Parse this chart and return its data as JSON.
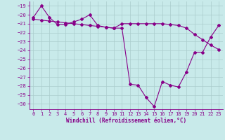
{
  "x": [
    0,
    1,
    2,
    3,
    4,
    5,
    6,
    7,
    8,
    9,
    10,
    11,
    12,
    13,
    14,
    15,
    16,
    17,
    18,
    19,
    20,
    21,
    22,
    23
  ],
  "y_actual": [
    -20.3,
    -19.0,
    -20.3,
    -21.1,
    -21.1,
    -20.8,
    -20.5,
    -20.0,
    -21.2,
    -21.4,
    -21.5,
    -21.5,
    -27.8,
    -27.9,
    -29.3,
    -30.3,
    -27.5,
    -27.9,
    -28.1,
    -26.4,
    -24.2,
    -24.2,
    -22.5,
    -21.2
  ],
  "y_trend": [
    -20.5,
    -20.6,
    -20.7,
    -20.8,
    -20.9,
    -21.0,
    -21.1,
    -21.2,
    -21.3,
    -21.4,
    -21.5,
    -21.0,
    -21.0,
    -21.0,
    -21.0,
    -21.0,
    -21.0,
    -21.1,
    -21.2,
    -21.5,
    -22.2,
    -22.8,
    -23.4,
    -23.9
  ],
  "xlim": [
    -0.5,
    23.5
  ],
  "ylim": [
    -30.6,
    -18.5
  ],
  "yticks": [
    -19,
    -20,
    -21,
    -22,
    -23,
    -24,
    -25,
    -26,
    -27,
    -28,
    -29,
    -30
  ],
  "xticks": [
    0,
    1,
    2,
    3,
    4,
    5,
    6,
    7,
    8,
    9,
    10,
    11,
    12,
    13,
    14,
    15,
    16,
    17,
    18,
    19,
    20,
    21,
    22,
    23
  ],
  "xlabel": "Windchill (Refroidissement éolien,°C)",
  "line_color": "#880088",
  "bg_color": "#c8eaea",
  "grid_color": "#aacccc",
  "marker": "D",
  "marker_size": 2.0
}
